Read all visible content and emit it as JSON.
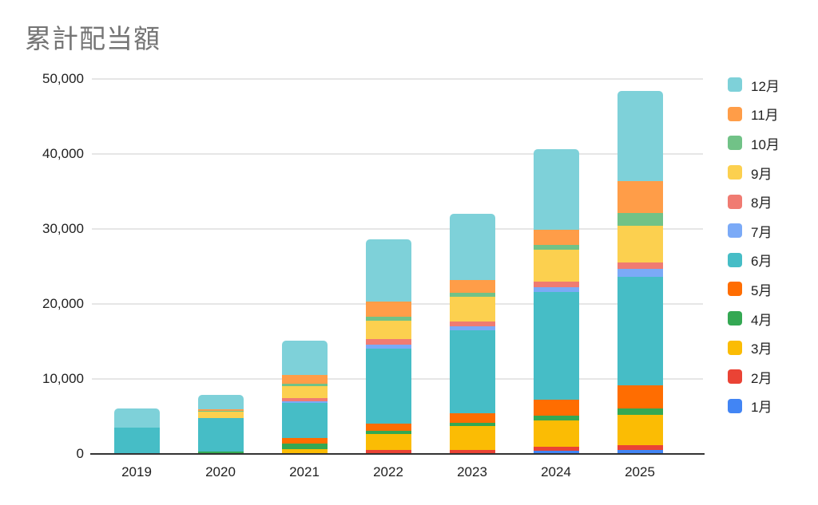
{
  "chart": {
    "title": "累計配当額"
  },
  "chart_data": {
    "type": "bar",
    "stacked": true,
    "title": "累計配当額",
    "xlabel": "",
    "ylabel": "",
    "categories": [
      "2019",
      "2020",
      "2021",
      "2022",
      "2023",
      "2024",
      "2025"
    ],
    "series": [
      {
        "name": "1月",
        "color": "#4285f4",
        "values": [
          0,
          0,
          0,
          0,
          0,
          460,
          560
        ]
      },
      {
        "name": "2月",
        "color": "#ea4335",
        "values": [
          0,
          0,
          0,
          530,
          560,
          530,
          600
        ]
      },
      {
        "name": "3月",
        "color": "#fbbc04",
        "values": [
          0,
          130,
          670,
          2120,
          3150,
          3530,
          4060
        ]
      },
      {
        "name": "4月",
        "color": "#34a853",
        "values": [
          0,
          220,
          740,
          460,
          460,
          640,
          880
        ]
      },
      {
        "name": "5月",
        "color": "#ff6d01",
        "values": [
          0,
          0,
          740,
          950,
          1240,
          2090,
          3010
        ]
      },
      {
        "name": "6月",
        "color": "#46bdc6",
        "values": [
          3530,
          4400,
          4630,
          9990,
          11120,
          14400,
          14540
        ]
      },
      {
        "name": "7月",
        "color": "#7baaf7",
        "values": [
          0,
          0,
          280,
          530,
          530,
          600,
          1060
        ]
      },
      {
        "name": "8月",
        "color": "#f07b72",
        "values": [
          0,
          0,
          360,
          780,
          590,
          710,
          780
        ]
      },
      {
        "name": "9月",
        "color": "#fcd04f",
        "values": [
          0,
          850,
          1620,
          2390,
          3280,
          4240,
          4930
        ]
      },
      {
        "name": "10月",
        "color": "#71c287",
        "values": [
          0,
          150,
          320,
          600,
          600,
          640,
          1690
        ]
      },
      {
        "name": "11月",
        "color": "#ff9d48",
        "values": [
          0,
          250,
          1160,
          1980,
          1690,
          2010,
          4310
        ]
      },
      {
        "name": "12月",
        "color": "#7ed1d9",
        "values": [
          2570,
          1900,
          4590,
          8260,
          8820,
          10770,
          12000
        ]
      }
    ],
    "totals": [
      6100,
      7900,
      15110,
      28590,
      32040,
      40620,
      48420
    ],
    "ylim": [
      0,
      50000
    ],
    "yticks": [
      {
        "label": "0",
        "value": 0
      },
      {
        "label": "10,000",
        "value": 10000
      },
      {
        "label": "20,000",
        "value": 20000
      },
      {
        "label": "30,000",
        "value": 30000
      },
      {
        "label": "40,000",
        "value": 40000
      },
      {
        "label": "50,000",
        "value": 50000
      }
    ],
    "grid": true,
    "legend_position": "right",
    "legend_order": "reversed"
  }
}
